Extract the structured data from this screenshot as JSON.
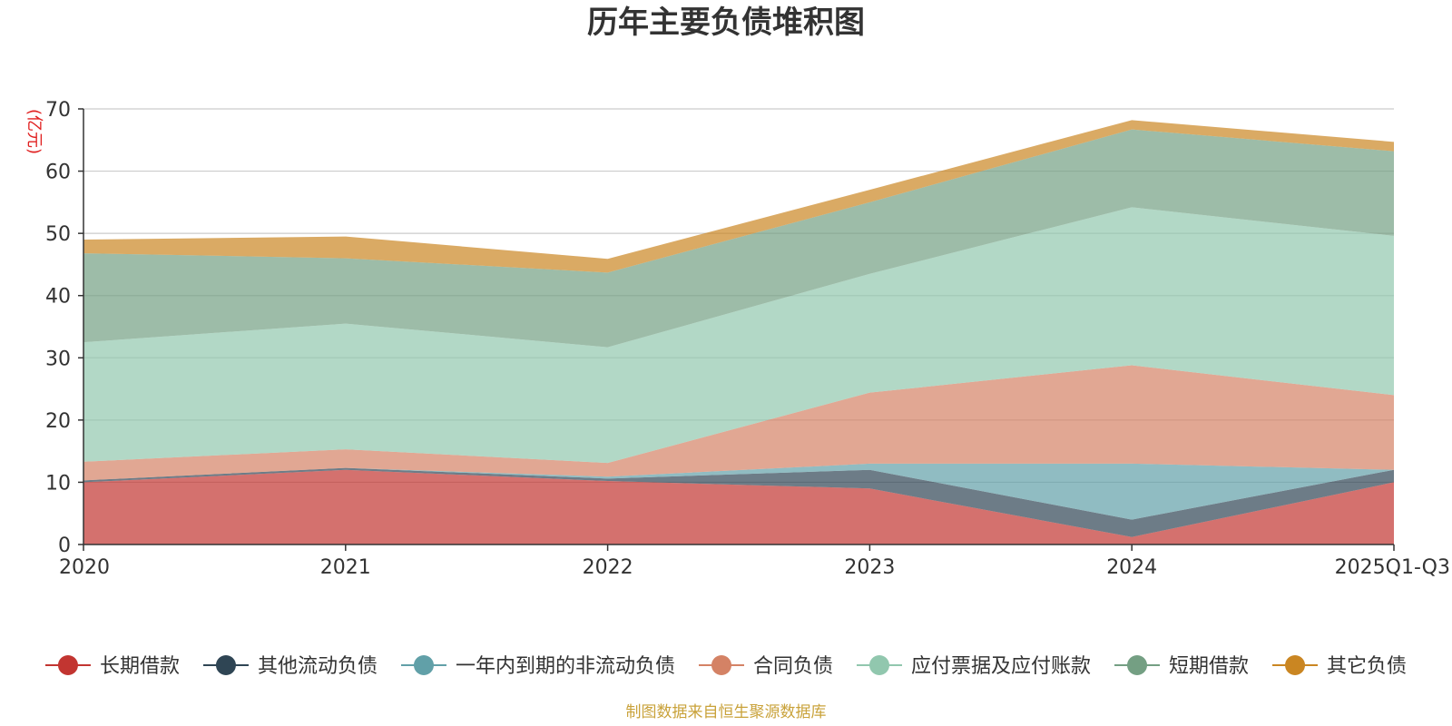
{
  "chart_data": {
    "type": "area",
    "stacked": true,
    "title": "历年主要负债堆积图",
    "y_unit": "(亿元)",
    "categories": [
      "2020",
      "2021",
      "2022",
      "2023",
      "2024",
      "2025Q1-Q3"
    ],
    "ylim": [
      0,
      70
    ],
    "y_ticks": [
      "0",
      "10",
      "20",
      "30",
      "40",
      "50",
      "60",
      "70"
    ],
    "grid": true,
    "legend_position": "bottom",
    "series": [
      {
        "name": "长期借款",
        "color": "#c23531",
        "values": [
          10.0,
          12.0,
          10.2,
          9.0,
          1.2,
          10.0
        ]
      },
      {
        "name": "其他流动负债",
        "color": "#2f4554",
        "values": [
          0.3,
          0.3,
          0.4,
          3.0,
          2.8,
          2.0
        ]
      },
      {
        "name": "一年内到期的非流动负债",
        "color": "#61a0a8",
        "values": [
          0.0,
          0.0,
          0.3,
          1.0,
          9.0,
          0.0
        ]
      },
      {
        "name": "合同负债",
        "color": "#d48265",
        "values": [
          3.0,
          3.0,
          2.2,
          11.4,
          15.8,
          12.0
        ]
      },
      {
        "name": "应付票据及应付账款",
        "color": "#91c7ae",
        "values": [
          19.2,
          20.2,
          18.6,
          19.1,
          25.4,
          25.6
        ]
      },
      {
        "name": "短期借款",
        "color": "#749f83",
        "values": [
          14.3,
          10.5,
          12.0,
          11.5,
          12.5,
          13.6
        ]
      },
      {
        "name": "其它负债",
        "color": "#ca8622",
        "values": [
          2.2,
          3.5,
          2.2,
          2.0,
          1.5,
          1.5
        ]
      }
    ],
    "source_note": "制图数据来自恒生聚源数据库"
  }
}
